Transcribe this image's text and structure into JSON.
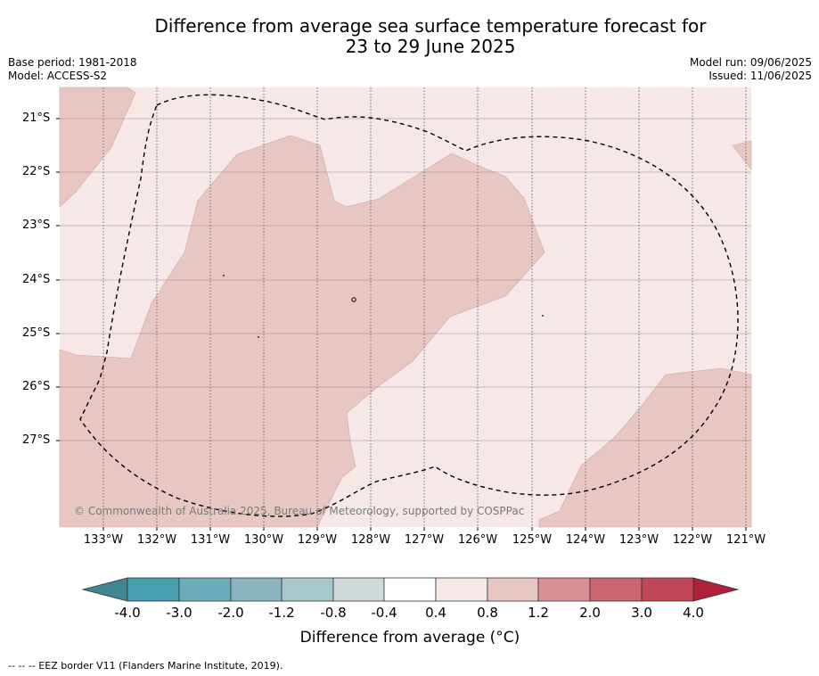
{
  "title_line1": "Difference from average sea surface temperature forecast for",
  "title_line2": "23 to 29 June 2025",
  "base_period": "Base period: 1981-2018",
  "model": "Model: ACCESS-S2",
  "model_run": "Model run: 09/06/2025",
  "issued": "Issued: 11/06/2025",
  "latitudes": [
    "21°S",
    "22°S",
    "23°S",
    "24°S",
    "25°S",
    "26°S",
    "27°S"
  ],
  "longitudes": [
    "133°W",
    "132°W",
    "131°W",
    "130°W",
    "129°W",
    "128°W",
    "127°W",
    "126°W",
    "125°W",
    "124°W",
    "123°W",
    "122°W",
    "121°W"
  ],
  "copyright": "© Commonwealth of Australia 2025, Bureau of Meteorology, supported by COSPPac",
  "colorbar": {
    "labels": [
      "-4.0",
      "-3.0",
      "-2.0",
      "-1.2",
      "-0.8",
      "-0.4",
      "0.4",
      "0.8",
      "1.2",
      "2.0",
      "3.0",
      "4.0"
    ],
    "colors": [
      "#418694",
      "#469fae",
      "#6badba",
      "#8ab5c0",
      "#a8c7cb",
      "#d0d8d9",
      "#ffffff",
      "#f5e8e6",
      "#e8c7c2",
      "#d88f96",
      "#cb6670",
      "#c04757",
      "#ad213b"
    ],
    "title": "Difference from average (°C)"
  },
  "legend_note": "--  --  -- EEZ border V11 (Flanders Marine Institute, 2019).",
  "fill_colors": {
    "ocean_light": "#f5e8e6",
    "ocean_warm": "#e8c7c2"
  }
}
